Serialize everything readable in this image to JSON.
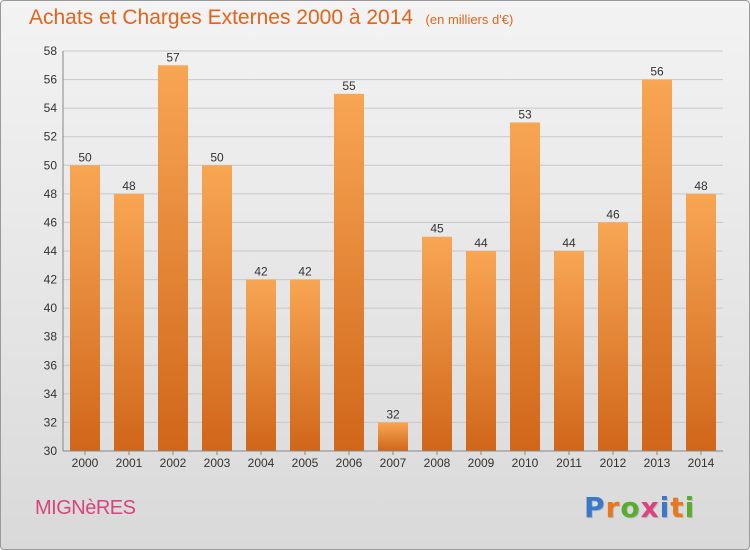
{
  "header": {
    "title": "Achats et Charges Externes 2000 à 2014",
    "subtitle": "(en milliers d'€)"
  },
  "footer": {
    "commune": "MIGNèRES",
    "brand": "Proxiti",
    "brand_letters": [
      {
        "char": "P",
        "color": "#3a78c8"
      },
      {
        "char": "r",
        "color": "#e8771e"
      },
      {
        "char": "o",
        "color": "#5bab2f"
      },
      {
        "char": "x",
        "color": "#d8457e"
      },
      {
        "char": "i",
        "color": "#3a78c8"
      },
      {
        "char": "t",
        "color": "#e8771e"
      },
      {
        "char": "i",
        "color": "#5bab2f"
      }
    ]
  },
  "colors": {
    "accent": "#e0641c",
    "bar_top": "#f8a653",
    "bar_bottom": "#d0661a",
    "grid": "#c8c8c8",
    "text": "#333333"
  },
  "chart_data": {
    "type": "bar",
    "title": "Achats et Charges Externes 2000 à 2014",
    "subtitle": "(en milliers d'€)",
    "categories": [
      "2000",
      "2001",
      "2002",
      "2003",
      "2004",
      "2005",
      "2006",
      "2007",
      "2008",
      "2009",
      "2010",
      "2011",
      "2012",
      "2013",
      "2014"
    ],
    "values": [
      50,
      48,
      57,
      50,
      42,
      42,
      55,
      32,
      45,
      44,
      53,
      44,
      46,
      56,
      48
    ],
    "ylim": [
      30,
      58
    ],
    "yticks": [
      30,
      32,
      34,
      36,
      38,
      40,
      42,
      44,
      46,
      48,
      50,
      52,
      54,
      56,
      58
    ],
    "grid": true,
    "data_labels": true
  }
}
